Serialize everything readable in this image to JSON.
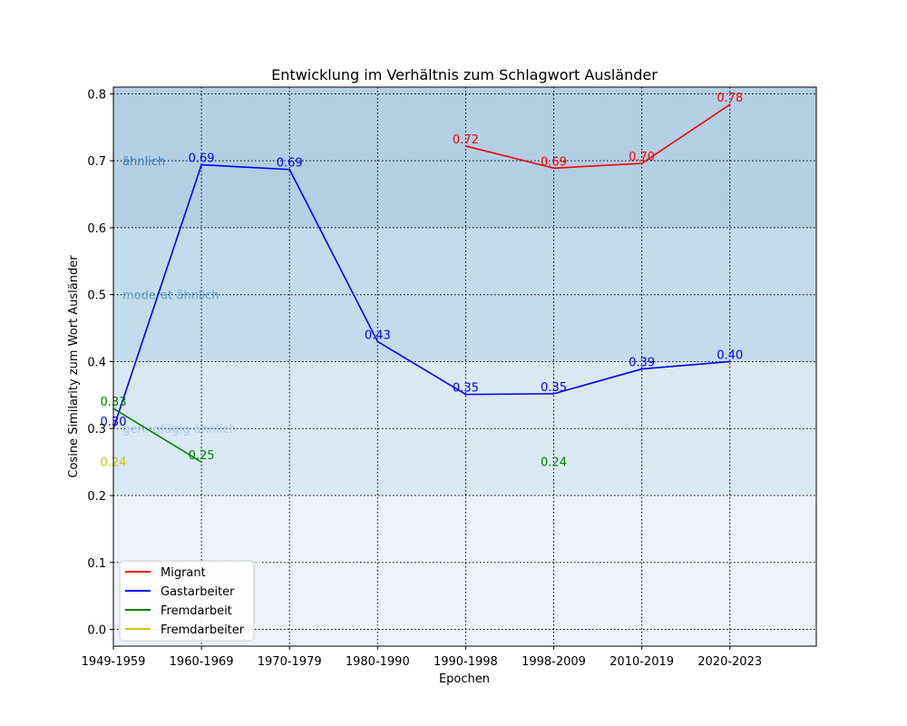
{
  "chart_data": {
    "type": "line",
    "title": "Entwicklung im Verhältnis zum Schlagwort Ausländer",
    "xlabel": "Epochen",
    "ylabel": "Cosine Similarity zum Wort Ausländer",
    "categories": [
      "1949-1959",
      "1960-1969",
      "1970-1979",
      "1980-1990",
      "1990-1998",
      "1998-2009",
      "2010-2019",
      "2020-2023"
    ],
    "ylim": [
      -0.025,
      0.81
    ],
    "yticks": [
      "0.0",
      "0.1",
      "0.2",
      "0.3",
      "0.4",
      "0.5",
      "0.6",
      "0.7",
      "0.8"
    ],
    "grid": true,
    "legend_position": "lower-left",
    "bands": [
      {
        "from": -0.025,
        "to": 0.2,
        "label": "wenig/gar nicht ähnlich",
        "label_y": 0.1,
        "fill": "#eef3f9",
        "text_color": "#e3ebf5"
      },
      {
        "from": 0.2,
        "to": 0.4,
        "label": "geringfügig ähnlich",
        "label_y": 0.3,
        "fill": "#d9e9f2",
        "text_color": "#a9cde4"
      },
      {
        "from": 0.4,
        "to": 0.6,
        "label": "moderat ähnlich",
        "label_y": 0.5,
        "fill": "#c3dceb",
        "text_color": "#5fa4d2"
      },
      {
        "from": 0.6,
        "to": 0.81,
        "label": "ähnlich",
        "label_y": 0.7,
        "fill": "#b2cfe4",
        "text_color": "#3a7bbf"
      }
    ],
    "series": [
      {
        "name": "Migrant",
        "color": "#ff0000",
        "points": [
          {
            "x": 4,
            "y": 0.722,
            "label": "0.72"
          },
          {
            "x": 5,
            "y": 0.689,
            "label": "0.69"
          },
          {
            "x": 6,
            "y": 0.696,
            "label": "0.70"
          },
          {
            "x": 7,
            "y": 0.784,
            "label": "0.78"
          }
        ]
      },
      {
        "name": "Gastarbeiter",
        "color": "#0000ff",
        "points": [
          {
            "x": 0,
            "y": 0.3,
            "label": "0.30"
          },
          {
            "x": 1,
            "y": 0.694,
            "label": "0.69"
          },
          {
            "x": 2,
            "y": 0.687,
            "label": "0.69"
          },
          {
            "x": 3,
            "y": 0.43,
            "label": "0.43"
          },
          {
            "x": 4,
            "y": 0.351,
            "label": "0.35"
          },
          {
            "x": 5,
            "y": 0.352,
            "label": "0.35"
          },
          {
            "x": 6,
            "y": 0.389,
            "label": "0.39"
          },
          {
            "x": 7,
            "y": 0.4,
            "label": "0.40"
          }
        ]
      },
      {
        "name": "Fremdarbeit",
        "color": "#008000",
        "points": [
          {
            "x": 0,
            "y": 0.33,
            "label": "0.33"
          },
          {
            "x": 1,
            "y": 0.25,
            "label": "0.25"
          },
          {
            "x": 5,
            "y": 0.24,
            "label": "0.24"
          }
        ]
      },
      {
        "name": "Fremdarbeiter",
        "color": "#c8c800",
        "points": [
          {
            "x": 0,
            "y": 0.24,
            "label": "0.24"
          }
        ]
      }
    ]
  }
}
